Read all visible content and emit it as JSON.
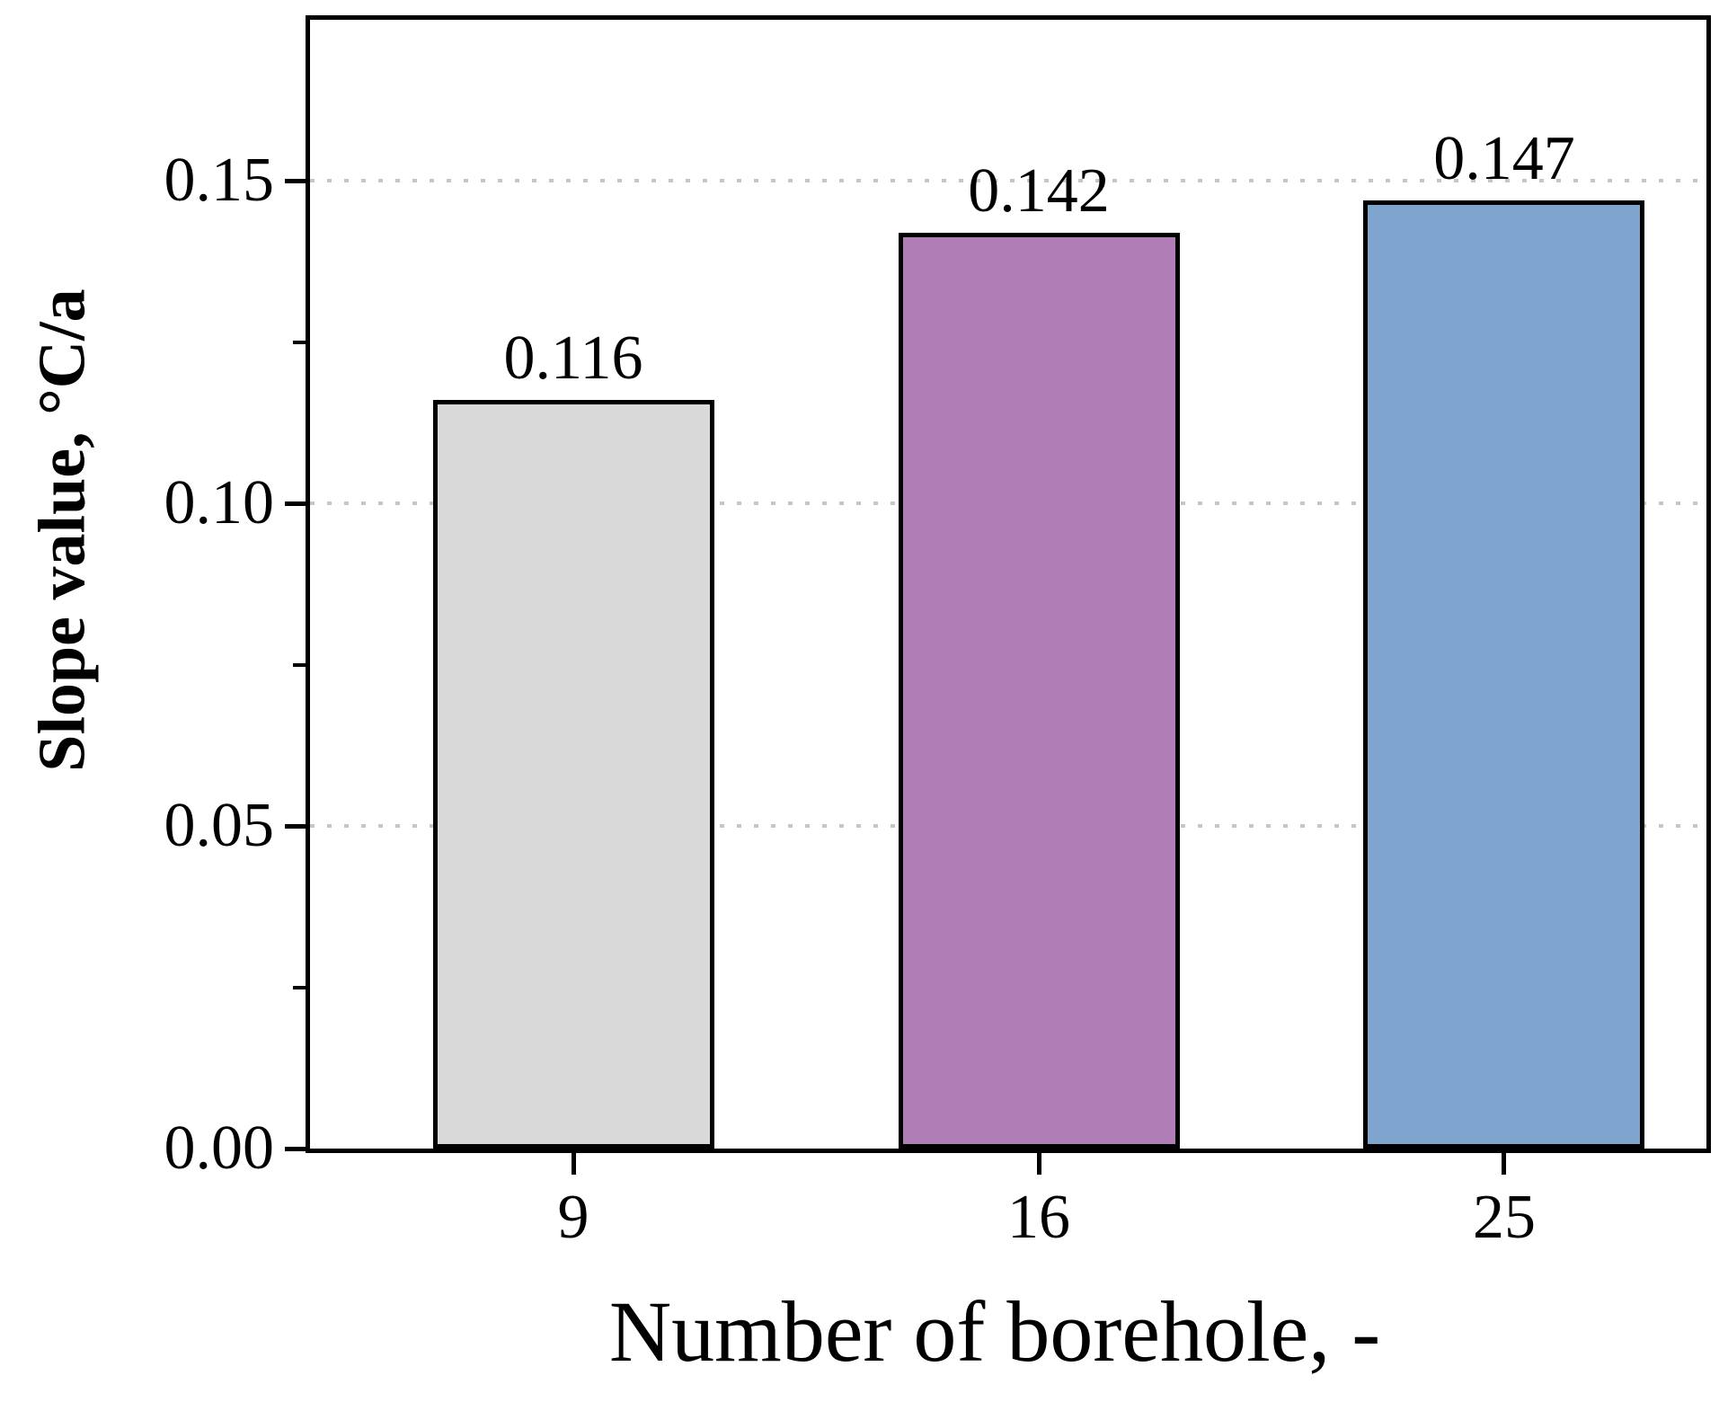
{
  "chart_data": {
    "type": "bar",
    "title": "",
    "xlabel": "Number of borehole, -",
    "ylabel": "Slope value, °C/a",
    "categories": [
      "9",
      "16",
      "25"
    ],
    "values": [
      0.116,
      0.142,
      0.147
    ],
    "bar_value_labels": [
      "0.116",
      "0.142",
      "0.147"
    ],
    "bar_colors": [
      "#d9d9d9",
      "#b07db6",
      "#7fa5cf"
    ],
    "bar_edge_color": "#000000",
    "axis_color": "#000000",
    "grid_color": "#c6c6c6",
    "grid_style": "dotted",
    "gridline_values": [
      0.05,
      0.1,
      0.15
    ],
    "ylim": [
      0,
      0.175
    ],
    "ytick_values": [
      0,
      0.05,
      0.1,
      0.15
    ],
    "ytick_labels": [
      "0.00",
      "0.05",
      "0.10",
      "0.15"
    ],
    "minor_ytick_values": [
      0.025,
      0.075,
      0.125
    ],
    "legend": "none",
    "plot_background": "#ffffff"
  }
}
